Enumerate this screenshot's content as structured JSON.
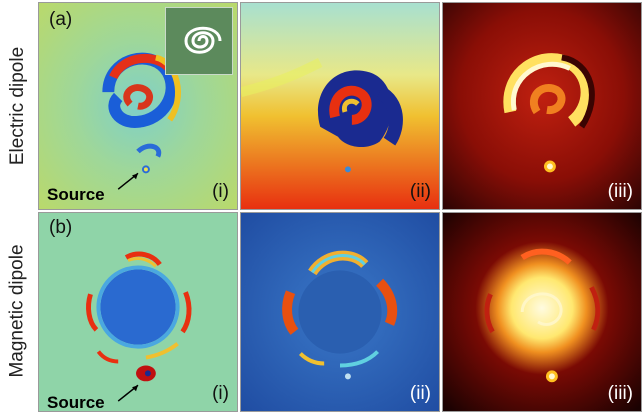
{
  "rows": [
    {
      "label": "Electric dipole",
      "tag": "(a)"
    },
    {
      "label": "Magnetic dipole",
      "tag": "(b)"
    }
  ],
  "columns": [
    "(i)",
    "(ii)",
    "(iii)"
  ],
  "source_label": "Source",
  "colors": {
    "field_bg": "#8fd4a8",
    "phase_bg": "#f5a623",
    "intensity_bg": "#2a0000",
    "magnetic_phase_bg": "#2a5fb0"
  }
}
